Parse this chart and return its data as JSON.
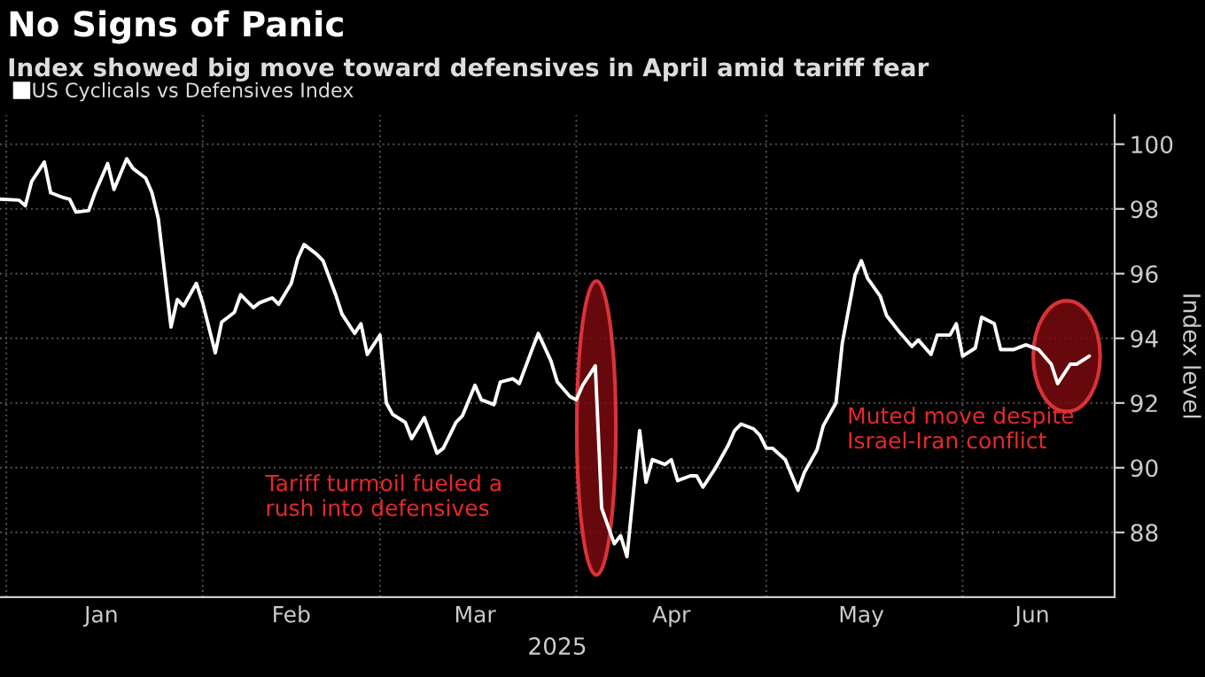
{
  "chart_data": {
    "type": "line",
    "title": "No Signs of Panic",
    "subtitle": "Index showed big move toward defensives in April amid tariff fear",
    "xlabel": "2025",
    "ylabel": "Index level",
    "annotations": [
      "Tariff turmoil fueled a\nrush into defensives",
      "Muted move despite\nIsrael-Iran conflict"
    ],
    "xlim": [
      "2024-12-31",
      "2025-06-25"
    ],
    "xticks": [
      {
        "value": "2025-01-01",
        "label": null
      },
      {
        "value": "2025-01-16",
        "label": "Jan"
      },
      {
        "value": "2025-02-01",
        "label": null
      },
      {
        "value": "2025-02-15",
        "label": "Feb"
      },
      {
        "value": "2025-03-01",
        "label": null
      },
      {
        "value": "2025-03-16",
        "label": "Mar"
      },
      {
        "value": "2025-04-01",
        "label": null
      },
      {
        "value": "2025-04-16",
        "label": "Apr"
      },
      {
        "value": "2025-05-01",
        "label": null
      },
      {
        "value": "2025-05-16",
        "label": "May"
      },
      {
        "value": "2025-06-01",
        "label": null
      },
      {
        "value": "2025-06-12",
        "label": "Jun"
      }
    ],
    "ylim": [
      86,
      100.9
    ],
    "yticks": [
      88,
      90,
      92,
      94,
      96,
      98,
      100
    ],
    "grid": true,
    "legend": "top left",
    "series": [
      {
        "name": "US Cyclicals vs Defensives Index",
        "color": "#ffffff",
        "x": [
          "2024-12-31",
          "2025-01-03",
          "2025-01-04",
          "2025-01-05",
          "2025-01-07",
          "2025-01-08",
          "2025-01-10",
          "2025-01-11",
          "2025-01-12",
          "2025-01-14",
          "2025-01-15",
          "2025-01-17",
          "2025-01-18",
          "2025-01-20",
          "2025-01-21",
          "2025-01-23",
          "2025-01-24",
          "2025-01-25",
          "2025-01-27",
          "2025-01-28",
          "2025-01-29",
          "2025-01-31",
          "2025-02-01",
          "2025-02-03",
          "2025-02-04",
          "2025-02-06",
          "2025-02-07",
          "2025-02-09",
          "2025-02-10",
          "2025-02-12",
          "2025-02-13",
          "2025-02-15",
          "2025-02-16",
          "2025-02-17",
          "2025-02-19",
          "2025-02-20",
          "2025-02-22",
          "2025-02-23",
          "2025-02-25",
          "2025-02-26",
          "2025-02-27",
          "2025-03-01",
          "2025-03-02",
          "2025-03-03",
          "2025-03-05",
          "2025-03-06",
          "2025-03-08",
          "2025-03-10",
          "2025-03-11",
          "2025-03-13",
          "2025-03-14",
          "2025-03-16",
          "2025-03-17",
          "2025-03-19",
          "2025-03-20",
          "2025-03-22",
          "2025-03-23",
          "2025-03-25",
          "2025-03-26",
          "2025-03-28",
          "2025-03-29",
          "2025-03-31",
          "2025-04-01",
          "2025-04-02",
          "2025-04-04",
          "2025-04-05",
          "2025-04-07",
          "2025-04-08",
          "2025-04-09",
          "2025-04-11",
          "2025-04-12",
          "2025-04-13",
          "2025-04-15",
          "2025-04-16",
          "2025-04-17",
          "2025-04-19",
          "2025-04-20",
          "2025-04-21",
          "2025-04-23",
          "2025-04-25",
          "2025-04-26",
          "2025-04-27",
          "2025-04-29",
          "2025-04-30",
          "2025-05-01",
          "2025-05-02",
          "2025-05-04",
          "2025-05-06",
          "2025-05-07",
          "2025-05-09",
          "2025-05-10",
          "2025-05-12",
          "2025-05-13",
          "2025-05-15",
          "2025-05-16",
          "2025-05-17",
          "2025-05-19",
          "2025-05-20",
          "2025-05-22",
          "2025-05-24",
          "2025-05-25",
          "2025-05-27",
          "2025-05-28",
          "2025-05-30",
          "2025-05-31",
          "2025-06-01",
          "2025-06-03",
          "2025-06-04",
          "2025-06-06",
          "2025-06-07",
          "2025-06-09",
          "2025-06-11",
          "2025-06-13",
          "2025-06-15",
          "2025-06-16",
          "2025-06-18",
          "2025-06-19",
          "2025-06-21"
        ],
        "values": [
          98.3,
          98.27,
          98.1,
          98.85,
          99.45,
          98.5,
          98.35,
          98.3,
          97.9,
          97.95,
          98.5,
          99.4,
          98.6,
          99.55,
          99.25,
          98.95,
          98.5,
          97.7,
          94.35,
          95.2,
          95.0,
          95.7,
          95.1,
          93.55,
          94.5,
          94.8,
          95.35,
          94.95,
          95.1,
          95.25,
          95.05,
          95.7,
          96.45,
          96.9,
          96.6,
          96.4,
          95.35,
          94.75,
          94.15,
          94.45,
          93.5,
          94.1,
          92.0,
          91.65,
          91.4,
          90.9,
          91.55,
          90.45,
          90.6,
          91.4,
          91.6,
          92.55,
          92.1,
          91.95,
          92.65,
          92.75,
          92.6,
          93.65,
          94.15,
          93.3,
          92.65,
          92.2,
          92.1,
          92.55,
          93.15,
          88.75,
          87.65,
          87.9,
          87.25,
          91.15,
          89.55,
          90.25,
          90.1,
          90.25,
          89.6,
          89.75,
          89.75,
          89.4,
          90.0,
          90.7,
          91.15,
          91.35,
          91.2,
          91.0,
          90.6,
          90.6,
          90.25,
          89.3,
          89.85,
          90.55,
          91.3,
          92.0,
          93.85,
          95.95,
          96.4,
          95.85,
          95.3,
          94.7,
          94.2,
          93.75,
          93.95,
          93.5,
          94.1,
          94.1,
          94.45,
          93.45,
          93.7,
          94.65,
          94.45,
          93.65,
          93.65,
          93.8,
          93.65,
          93.2,
          92.6,
          93.2,
          93.2,
          93.45
        ]
      }
    ]
  }
}
